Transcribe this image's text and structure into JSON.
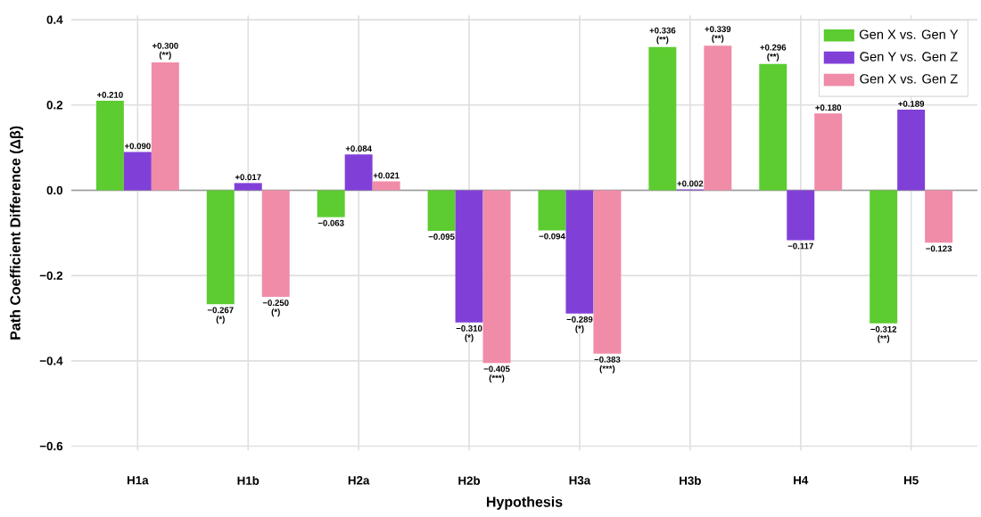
{
  "chart_data": {
    "type": "bar",
    "xlabel": "Hypothesis",
    "ylabel": "Path Coefficient Difference (Δβ)",
    "categories": [
      "H1a",
      "H1b",
      "H2a",
      "H2b",
      "H3a",
      "H3b",
      "H4",
      "H5"
    ],
    "series": [
      {
        "name": "Gen X vs. Gen Y",
        "color": "#5ccc30",
        "values": [
          0.21,
          -0.267,
          -0.063,
          -0.095,
          -0.094,
          0.336,
          0.296,
          -0.312
        ],
        "value_labels": [
          "+0.210",
          "−0.267 (*)",
          "−0.063",
          "−0.095",
          "−0.094",
          "+0.336 (**)",
          "+0.296 (**)",
          "−0.312 (**)"
        ]
      },
      {
        "name": "Gen Y vs. Gen Z",
        "color": "#8040d8",
        "values": [
          0.09,
          0.017,
          0.084,
          -0.31,
          -0.289,
          0.002,
          -0.117,
          0.189
        ],
        "value_labels": [
          "+0.090",
          "+0.017",
          "+0.084",
          "−0.310 (*)",
          "−0.289 (*)",
          "+0.002",
          "−0.117",
          "+0.189"
        ]
      },
      {
        "name": "Gen X vs. Gen Z",
        "color": "#f08ca8",
        "values": [
          0.3,
          -0.25,
          0.021,
          -0.405,
          -0.383,
          0.339,
          0.18,
          -0.123
        ],
        "value_labels": [
          "+0.300 (**)",
          "−0.250 (*)",
          "+0.021",
          "−0.405 (***)",
          "−0.383 (***)",
          "+0.339 (**)",
          "+0.180",
          "−0.123"
        ]
      }
    ],
    "ylim": [
      -0.61,
      0.41
    ],
    "yticks": [
      {
        "value": -0.6,
        "label": "−0.6"
      },
      {
        "value": -0.4,
        "label": "−0.4"
      },
      {
        "value": -0.2,
        "label": "−0.2"
      },
      {
        "value": 0.0,
        "label": "0.0"
      },
      {
        "value": 0.2,
        "label": "0.2"
      },
      {
        "value": 0.4,
        "label": "0.4"
      }
    ],
    "grid": true,
    "legend": "top right"
  }
}
